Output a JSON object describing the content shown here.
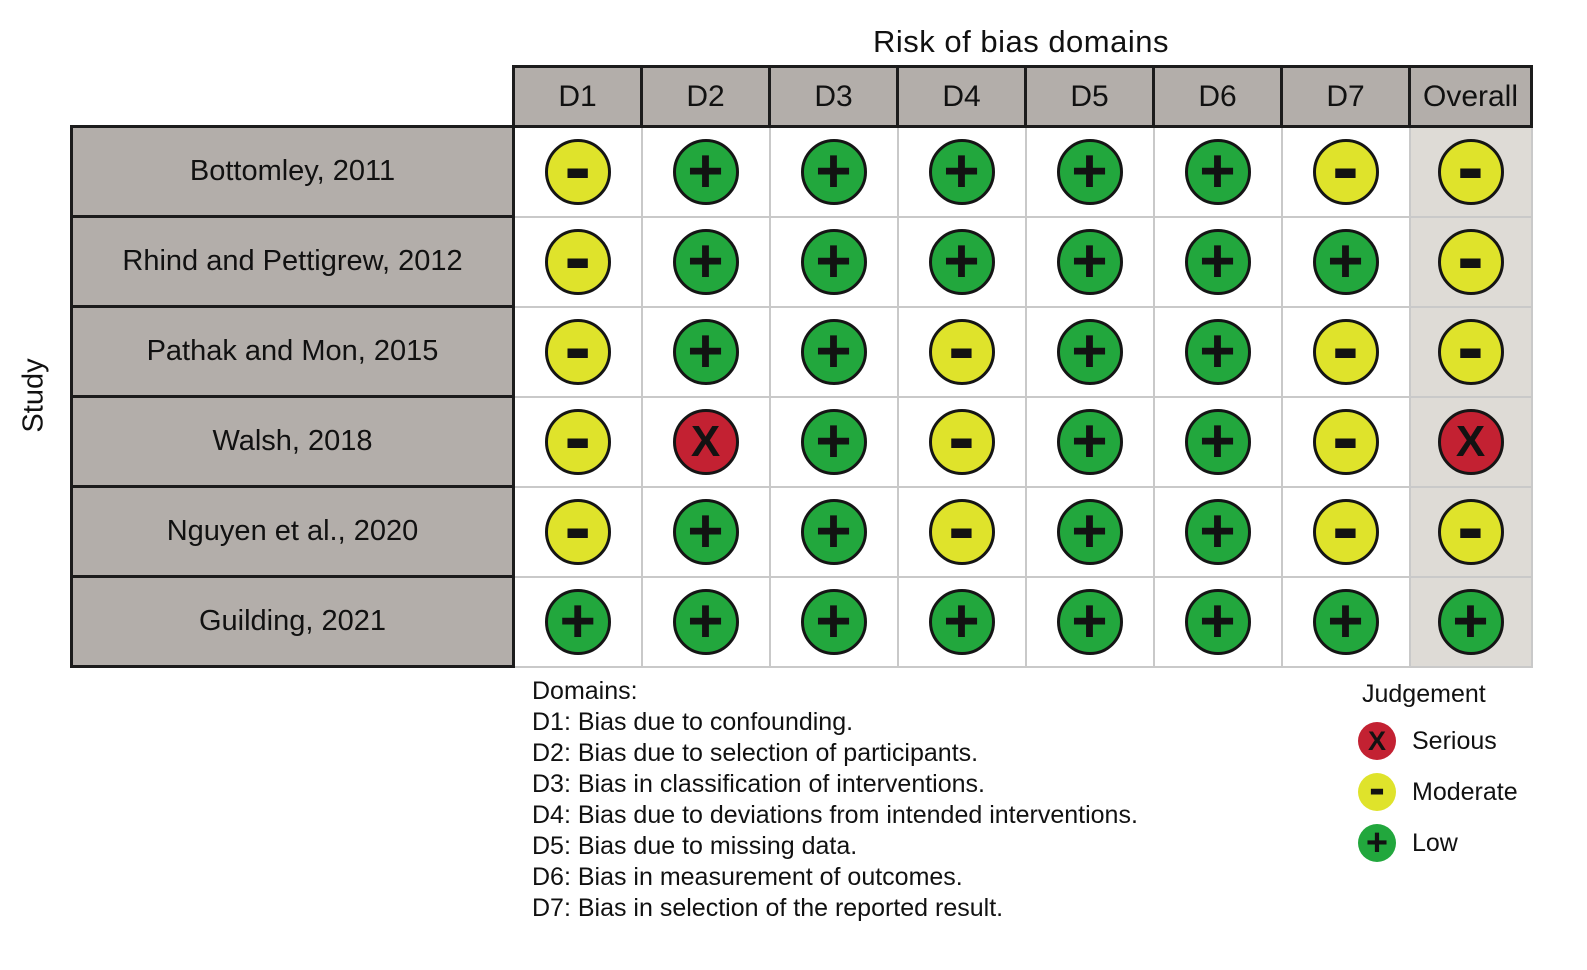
{
  "chart_data": {
    "type": "heatmap",
    "title": "Risk of bias domains",
    "y_axis_label": "Study",
    "x_categories": [
      "D1",
      "D2",
      "D3",
      "D4",
      "D5",
      "D6",
      "D7",
      "Overall"
    ],
    "y_categories": [
      "Bottomley, 2011",
      "Rhind and Pettigrew, 2012",
      "Pathak and Mon, 2015",
      "Walsh, 2018",
      "Nguyen et al., 2020",
      "Guilding, 2021"
    ],
    "values": [
      [
        "moderate",
        "low",
        "low",
        "low",
        "low",
        "low",
        "moderate",
        "moderate"
      ],
      [
        "moderate",
        "low",
        "low",
        "low",
        "low",
        "low",
        "low",
        "moderate"
      ],
      [
        "moderate",
        "low",
        "low",
        "moderate",
        "low",
        "low",
        "moderate",
        "moderate"
      ],
      [
        "moderate",
        "serious",
        "low",
        "moderate",
        "low",
        "low",
        "moderate",
        "serious"
      ],
      [
        "moderate",
        "low",
        "low",
        "moderate",
        "low",
        "low",
        "moderate",
        "moderate"
      ],
      [
        "low",
        "low",
        "low",
        "low",
        "low",
        "low",
        "low",
        "low"
      ]
    ],
    "judgements": {
      "serious": {
        "label": "Serious",
        "symbol": "X",
        "color": "#c32132"
      },
      "moderate": {
        "label": "Moderate",
        "symbol": "-",
        "color": "#dfe32b"
      },
      "low": {
        "label": "Low",
        "symbol": "+",
        "color": "#22a73d"
      }
    },
    "legend_title": "Judgement",
    "legend_order": [
      "serious",
      "moderate",
      "low"
    ],
    "notes_heading": "Domains:",
    "notes": [
      "D1: Bias due to confounding.",
      "D2: Bias due to selection of participants.",
      "D3: Bias in classification of interventions.",
      "D4: Bias due to deviations from intended interventions.",
      "D5: Bias due to missing data.",
      "D6: Bias in measurement of outcomes.",
      "D7: Bias in selection of the reported result."
    ]
  },
  "colors": {
    "header_bg": "#b3aeaa",
    "overall_column_bg": "#dedbd6",
    "matrix_cell_bg": "#ffffff",
    "grid_line": "#c9c9c9",
    "frame_line": "#1c1c1c"
  }
}
